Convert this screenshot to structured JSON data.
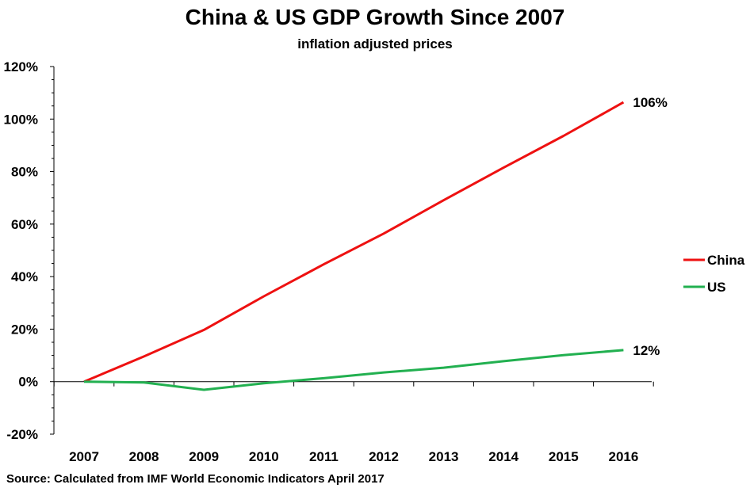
{
  "chart_data": {
    "type": "line",
    "title": "China & US GDP Growth Since 2007",
    "subtitle": "inflation adjusted prices",
    "source": "Source: Calculated from IMF World Economic Indicators April 2017",
    "x": [
      "2007",
      "2008",
      "2009",
      "2010",
      "2011",
      "2012",
      "2013",
      "2014",
      "2015",
      "2016"
    ],
    "y_ticks": [
      -20,
      0,
      20,
      40,
      60,
      80,
      100,
      120
    ],
    "y_tick_labels": [
      "-20%",
      "0%",
      "20%",
      "40%",
      "60%",
      "80%",
      "100%",
      "120%"
    ],
    "ylim": [
      -20,
      120
    ],
    "grid": false,
    "legend_position": "right",
    "series": [
      {
        "name": "China",
        "color": "#ee1111",
        "values": [
          0,
          9.6,
          19.7,
          32.5,
          44.7,
          56.4,
          69.1,
          81.5,
          93.6,
          106.4
        ],
        "end_label": "106%"
      },
      {
        "name": "US",
        "color": "#22b050",
        "values": [
          0,
          -0.3,
          -3.1,
          -0.6,
          1.3,
          3.5,
          5.3,
          7.8,
          10.1,
          12.0
        ],
        "end_label": "12%"
      }
    ]
  }
}
